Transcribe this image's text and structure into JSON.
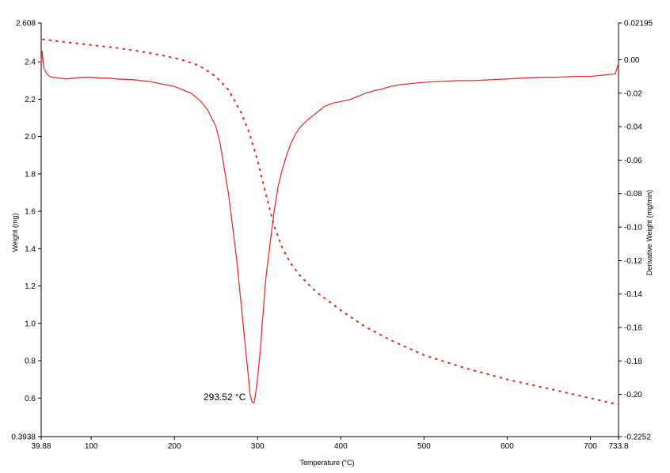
{
  "chart_data": {
    "type": "line",
    "title": "",
    "xlabel": "Temperature (°C)",
    "ylabel_left": "Weight (mg)",
    "ylabel_right": "Derivative Weight (mg/min)",
    "xlim": [
      39.88,
      733.8
    ],
    "ylim_left": [
      0.3938,
      2.608
    ],
    "ylim_right": [
      -0.2252,
      0.02195
    ],
    "x_ticks": [
      "39.88",
      "100",
      "200",
      "300",
      "400",
      "500",
      "600",
      "700",
      "733.8"
    ],
    "y_left_ticks": [
      "2.608",
      "2.4",
      "2.2",
      "2.0",
      "1.8",
      "1.6",
      "1.4",
      "1.2",
      "1.0",
      "0.8",
      "0.6",
      "0.3938"
    ],
    "y_right_ticks": [
      "0.02195",
      "0.00",
      "-0.02",
      "-0.04",
      "-0.06",
      "-0.08",
      "-0.10",
      "-0.12",
      "-0.14",
      "-0.16",
      "-0.18",
      "-0.20",
      "-0.2252"
    ],
    "grid": false,
    "colors": {
      "series": "#e8332b",
      "axis": "#000000"
    },
    "annotation": {
      "text": "293.52 °C",
      "x": 293.52,
      "y": -0.2048
    },
    "series": [
      {
        "axis": "left",
        "style": "dotted",
        "x": [
          42,
          60,
          80,
          100,
          130,
          160,
          190,
          210,
          230,
          250,
          265,
          280,
          290,
          300,
          310,
          320,
          330,
          340,
          350,
          370,
          400,
          430,
          460,
          500,
          550,
          600,
          650,
          700,
          733.8
        ],
        "y": [
          2.52,
          2.51,
          2.5,
          2.49,
          2.475,
          2.455,
          2.43,
          2.41,
          2.38,
          2.32,
          2.25,
          2.13,
          2.02,
          1.87,
          1.69,
          1.52,
          1.4,
          1.32,
          1.26,
          1.17,
          1.07,
          0.98,
          0.91,
          0.83,
          0.76,
          0.7,
          0.65,
          0.6,
          0.565
        ]
      },
      {
        "axis": "right",
        "style": "solid",
        "x": [
          39.88,
          41,
          43,
          46,
          50,
          60,
          70,
          80,
          90,
          100,
          110,
          120,
          130,
          150,
          170,
          190,
          200,
          210,
          220,
          230,
          240,
          250,
          255,
          260,
          265,
          270,
          275,
          280,
          285,
          288,
          291,
          293.52,
          296,
          298,
          300,
          303,
          306,
          310,
          315,
          320,
          325,
          330,
          335,
          340,
          345,
          350,
          360,
          370,
          380,
          390,
          400,
          410,
          420,
          430,
          440,
          450,
          460,
          470,
          480,
          490,
          500,
          520,
          540,
          560,
          580,
          600,
          620,
          640,
          660,
          680,
          700,
          720,
          730,
          733.8
        ],
        "y": [
          -0.002,
          0.005,
          -0.005,
          -0.008,
          -0.01,
          -0.011,
          -0.0115,
          -0.011,
          -0.0105,
          -0.0105,
          -0.011,
          -0.011,
          -0.0115,
          -0.012,
          -0.013,
          -0.015,
          -0.016,
          -0.018,
          -0.02,
          -0.024,
          -0.03,
          -0.04,
          -0.05,
          -0.065,
          -0.08,
          -0.1,
          -0.12,
          -0.145,
          -0.17,
          -0.185,
          -0.2,
          -0.2048,
          -0.2048,
          -0.198,
          -0.19,
          -0.175,
          -0.155,
          -0.13,
          -0.11,
          -0.09,
          -0.075,
          -0.065,
          -0.057,
          -0.05,
          -0.045,
          -0.041,
          -0.036,
          -0.032,
          -0.028,
          -0.026,
          -0.025,
          -0.024,
          -0.022,
          -0.02,
          -0.0185,
          -0.0175,
          -0.016,
          -0.015,
          -0.0145,
          -0.014,
          -0.0135,
          -0.013,
          -0.0125,
          -0.0125,
          -0.012,
          -0.0115,
          -0.011,
          -0.0105,
          -0.0105,
          -0.01,
          -0.01,
          -0.009,
          -0.0085,
          -0.002
        ]
      }
    ]
  }
}
